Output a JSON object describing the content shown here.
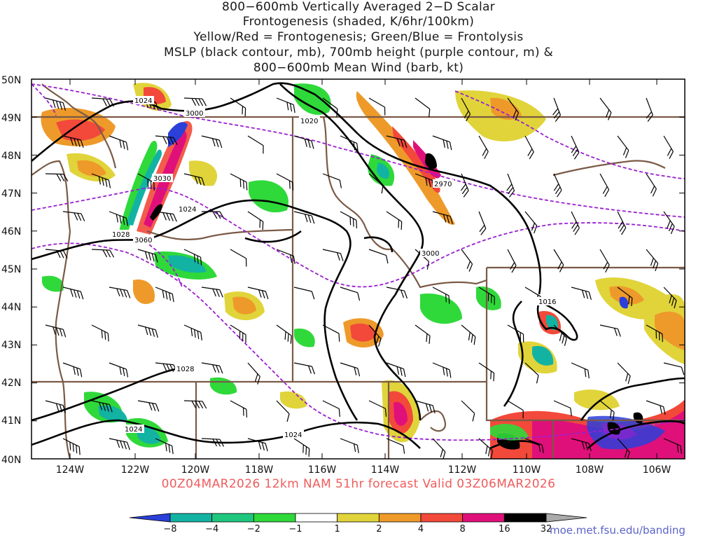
{
  "title": {
    "line1": "800−600mb Vertically Averaged 2−D Scalar",
    "line2": "Frontogenesis (shaded, K/6hr/100km)",
    "line3": "Yellow/Red = Frontogenesis;  Green/Blue = Frontolysis",
    "line4": "MSLP (black contour, mb), 700mb height (purple contour, m) &",
    "line5": "800−600mb Mean Wind (barb, kt)"
  },
  "lat_labels": [
    "50N",
    "49N",
    "48N",
    "47N",
    "46N",
    "45N",
    "44N",
    "43N",
    "42N",
    "41N",
    "40N"
  ],
  "lon_labels": [
    "124W",
    "122W",
    "120W",
    "118W",
    "116W",
    "114W",
    "112W",
    "110W",
    "108W",
    "106W"
  ],
  "contour_labels": {
    "mslp": [
      "1024",
      "1020",
      "1024",
      "1028",
      "1016",
      "1028",
      "1024",
      "1024"
    ],
    "height": [
      "3000",
      "3030",
      "3060",
      "2970",
      "3000"
    ]
  },
  "valid_text": "00Z04MAR2026 12km NAM 51hr forecast Valid 03Z06MAR2026",
  "colorbar": {
    "labels": [
      "−8",
      "−4",
      "−2",
      "−1",
      "1",
      "2",
      "4",
      "8",
      "16",
      "32"
    ],
    "colors": [
      "#2b3fd9",
      "#13b3a3",
      "#1fc77e",
      "#2fd93a",
      "#ffffff",
      "#e0d43a",
      "#ee9a2a",
      "#f2493a",
      "#e0107a",
      "#000000",
      "#aaaaaa"
    ]
  },
  "colors": {
    "border": "#7a5a46",
    "mslp": "#000000",
    "height": "#9a1fd0",
    "barb": "#000000"
  },
  "credit": "moe.met.fsu.edu/banding"
}
